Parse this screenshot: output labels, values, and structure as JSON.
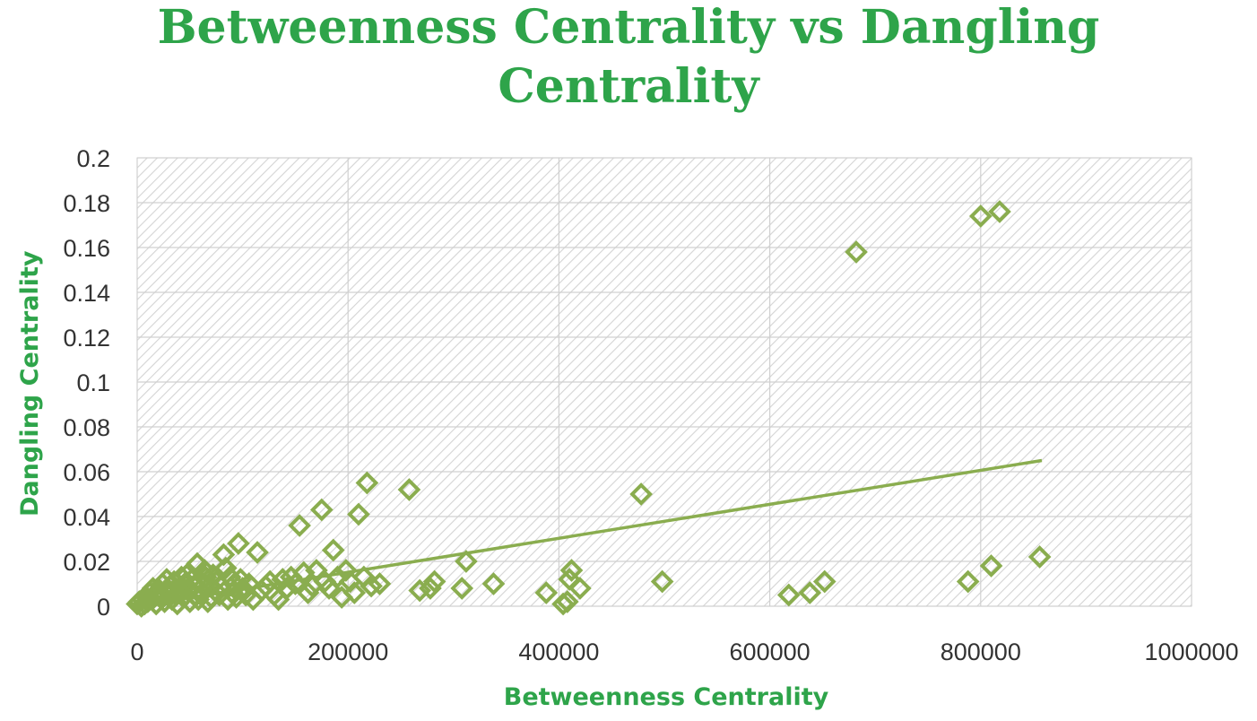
{
  "chart_data": {
    "type": "scatter",
    "title_line1": "Betweenness Centrality vs Dangling",
    "title_line2": "Centrality",
    "xlabel": "Betweenness Centrality",
    "ylabel": "Dangling Centrality",
    "xlim": [
      0,
      1000000
    ],
    "ylim": [
      0,
      0.2
    ],
    "xticks": [
      0,
      200000,
      400000,
      600000,
      800000,
      1000000
    ],
    "xtick_labels": [
      "0",
      "200000",
      "400000",
      "600000",
      "800000",
      "1000000"
    ],
    "yticks": [
      0,
      0.02,
      0.04,
      0.06,
      0.08,
      0.1,
      0.12,
      0.14,
      0.16,
      0.18,
      0.2
    ],
    "ytick_labels": [
      "0",
      "0.02",
      "0.04",
      "0.06",
      "0.08",
      "0.1",
      "0.12",
      "0.14",
      "0.16",
      "0.18",
      "0.2"
    ],
    "grid": true,
    "marker": "hollow-diamond",
    "series_color": "#8aad4f",
    "trendline": {
      "type": "linear",
      "x": [
        0,
        858000
      ],
      "y": [
        0.0,
        0.065
      ]
    },
    "points": [
      [
        0,
        0.001
      ],
      [
        2000,
        0.002
      ],
      [
        4000,
        0.0
      ],
      [
        5000,
        0.003
      ],
      [
        7000,
        0.001
      ],
      [
        9000,
        0.004
      ],
      [
        10000,
        0.002
      ],
      [
        12000,
        0.006
      ],
      [
        14000,
        0.003
      ],
      [
        15000,
        0.008
      ],
      [
        17000,
        0.005
      ],
      [
        18000,
        0.001
      ],
      [
        20000,
        0.007
      ],
      [
        22000,
        0.004
      ],
      [
        24000,
        0.01
      ],
      [
        26000,
        0.002
      ],
      [
        28000,
        0.012
      ],
      [
        30000,
        0.006
      ],
      [
        32000,
        0.009
      ],
      [
        33000,
        0.003
      ],
      [
        35000,
        0.011
      ],
      [
        37000,
        0.005
      ],
      [
        38000,
        0.001
      ],
      [
        40000,
        0.008
      ],
      [
        42000,
        0.013
      ],
      [
        44000,
        0.004
      ],
      [
        45000,
        0.01
      ],
      [
        47000,
        0.014
      ],
      [
        48000,
        0.007
      ],
      [
        50000,
        0.002
      ],
      [
        52000,
        0.012
      ],
      [
        54000,
        0.009
      ],
      [
        55000,
        0.005
      ],
      [
        57000,
        0.019
      ],
      [
        58000,
        0.003
      ],
      [
        60000,
        0.011
      ],
      [
        62000,
        0.006
      ],
      [
        64000,
        0.016
      ],
      [
        65000,
        0.013
      ],
      [
        67000,
        0.002
      ],
      [
        68000,
        0.009
      ],
      [
        70000,
        0.004
      ],
      [
        72000,
        0.014
      ],
      [
        74000,
        0.007
      ],
      [
        75000,
        0.011
      ],
      [
        78000,
        0.005
      ],
      [
        80000,
        0.009
      ],
      [
        82000,
        0.023
      ],
      [
        84000,
        0.017
      ],
      [
        86000,
        0.003
      ],
      [
        88000,
        0.013
      ],
      [
        90000,
        0.006
      ],
      [
        92000,
        0.01
      ],
      [
        94000,
        0.004
      ],
      [
        96000,
        0.028
      ],
      [
        98000,
        0.012
      ],
      [
        100000,
        0.008
      ],
      [
        103000,
        0.005
      ],
      [
        106000,
        0.01
      ],
      [
        110000,
        0.003
      ],
      [
        114000,
        0.024
      ],
      [
        118000,
        0.007
      ],
      [
        122000,
        0.009
      ],
      [
        126000,
        0.011
      ],
      [
        130000,
        0.005
      ],
      [
        134000,
        0.003
      ],
      [
        138000,
        0.012
      ],
      [
        142000,
        0.008
      ],
      [
        146000,
        0.013
      ],
      [
        150000,
        0.01
      ],
      [
        154000,
        0.036
      ],
      [
        158000,
        0.015
      ],
      [
        162000,
        0.006
      ],
      [
        166000,
        0.009
      ],
      [
        170000,
        0.016
      ],
      [
        175000,
        0.043
      ],
      [
        178000,
        0.011
      ],
      [
        182000,
        0.008
      ],
      [
        186000,
        0.025
      ],
      [
        190000,
        0.013
      ],
      [
        194000,
        0.004
      ],
      [
        198000,
        0.016
      ],
      [
        202000,
        0.011
      ],
      [
        206000,
        0.006
      ],
      [
        210000,
        0.041
      ],
      [
        215000,
        0.013
      ],
      [
        218000,
        0.055
      ],
      [
        222000,
        0.009
      ],
      [
        230000,
        0.01
      ],
      [
        258000,
        0.052
      ],
      [
        268000,
        0.007
      ],
      [
        278000,
        0.008
      ],
      [
        282000,
        0.011
      ],
      [
        308000,
        0.008
      ],
      [
        312000,
        0.02
      ],
      [
        338000,
        0.01
      ],
      [
        388000,
        0.006
      ],
      [
        404000,
        0.001
      ],
      [
        408000,
        0.002
      ],
      [
        410000,
        0.012
      ],
      [
        412000,
        0.016
      ],
      [
        420000,
        0.008
      ],
      [
        478000,
        0.05
      ],
      [
        498000,
        0.011
      ],
      [
        618000,
        0.005
      ],
      [
        638000,
        0.006
      ],
      [
        652000,
        0.011
      ],
      [
        682000,
        0.158
      ],
      [
        788000,
        0.011
      ],
      [
        800000,
        0.174
      ],
      [
        810000,
        0.018
      ],
      [
        818000,
        0.176
      ],
      [
        856000,
        0.022
      ]
    ]
  }
}
